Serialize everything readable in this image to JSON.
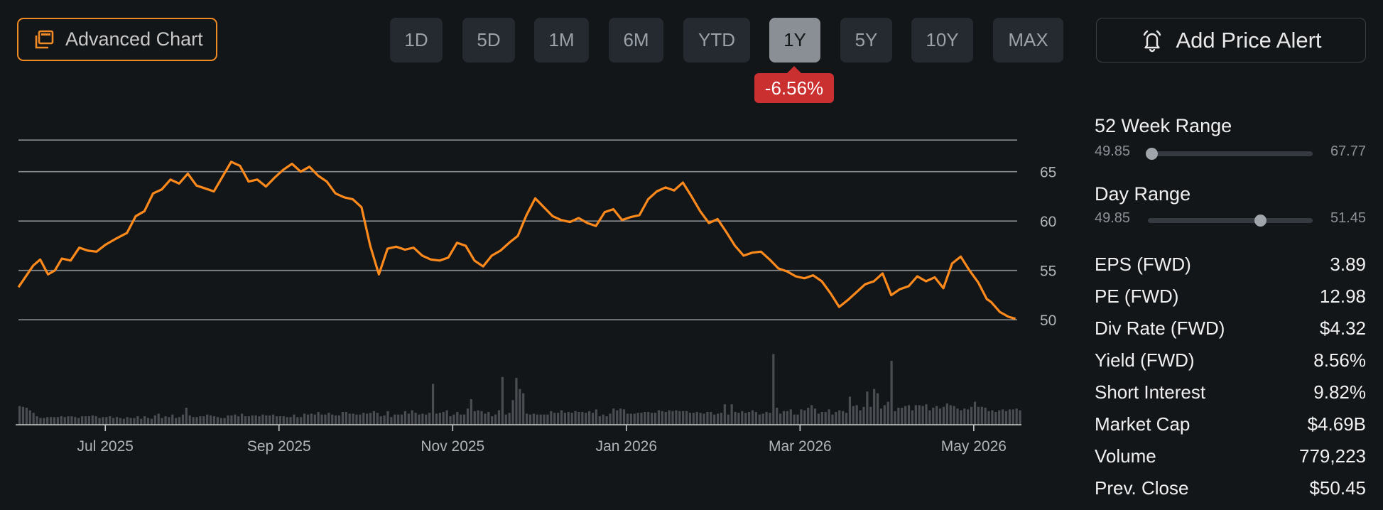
{
  "toolbar": {
    "advanced_chart_label": "Advanced Chart",
    "ranges": [
      "1D",
      "5D",
      "1M",
      "6M",
      "YTD",
      "1Y",
      "5Y",
      "10Y",
      "MAX"
    ],
    "active_range": "1Y",
    "change_badge": "-6.56%",
    "add_alert_label": "Add Price Alert"
  },
  "colors": {
    "line": "#ff8a1c",
    "accent_border": "#f08a24",
    "badge": "#c9302f",
    "volume": "#4a4d52",
    "grid": "#8a8d91",
    "background": "#131619"
  },
  "sidebar": {
    "week52": {
      "title": "52 Week Range",
      "low": "49.85",
      "high": "67.77",
      "position": 0.02
    },
    "day": {
      "title": "Day Range",
      "low": "49.85",
      "high": "51.45",
      "position": 0.68
    },
    "stats": [
      {
        "label": "EPS (FWD)",
        "value": "3.89"
      },
      {
        "label": "PE (FWD)",
        "value": "12.98"
      },
      {
        "label": "Div Rate (FWD)",
        "value": "$4.32"
      },
      {
        "label": "Yield (FWD)",
        "value": "8.56%"
      },
      {
        "label": "Short Interest",
        "value": "9.82%"
      },
      {
        "label": "Market Cap",
        "value": "$4.69B"
      },
      {
        "label": "Volume",
        "value": "779,223"
      },
      {
        "label": "Prev. Close",
        "value": "$50.45"
      }
    ]
  },
  "chart_data": {
    "type": "line",
    "x_tick_labels": [
      "Jul 2025",
      "Sep 2025",
      "Nov 2025",
      "Jan 2026",
      "Mar 2026",
      "May 2026"
    ],
    "y_tick_labels": [
      "65",
      "60",
      "55",
      "50"
    ],
    "x_ticks": [
      {
        "label": "Jul 2025",
        "month": 1.0
      },
      {
        "label": "Sep 2025",
        "month": 3.0
      },
      {
        "label": "Nov 2025",
        "month": 5.0
      },
      {
        "label": "Jan 2026",
        "month": 7.0
      },
      {
        "label": "Mar 2026",
        "month": 9.0
      },
      {
        "label": "May 2026",
        "month": 11.0
      }
    ],
    "y_ticks": [
      65,
      60,
      55,
      50
    ],
    "ylim": [
      49,
      68
    ],
    "xlim": [
      0.0,
      11.5
    ],
    "grid": true,
    "price": {
      "x": [
        0.0,
        0.17,
        0.25,
        0.34,
        0.42,
        0.5,
        0.6,
        0.7,
        0.8,
        0.9,
        1.0,
        1.12,
        1.25,
        1.35,
        1.45,
        1.55,
        1.65,
        1.75,
        1.85,
        1.95,
        2.05,
        2.15,
        2.25,
        2.35,
        2.45,
        2.55,
        2.65,
        2.75,
        2.85,
        2.95,
        3.05,
        3.15,
        3.25,
        3.35,
        3.45,
        3.55,
        3.65,
        3.75,
        3.85,
        3.95,
        4.05,
        4.15,
        4.25,
        4.35,
        4.45,
        4.55,
        4.65,
        4.75,
        4.85,
        4.95,
        5.05,
        5.15,
        5.25,
        5.35,
        5.45,
        5.55,
        5.65,
        5.75,
        5.85,
        5.95,
        6.05,
        6.15,
        6.25,
        6.35,
        6.45,
        6.55,
        6.65,
        6.75,
        6.85,
        6.95,
        7.05,
        7.15,
        7.25,
        7.35,
        7.45,
        7.55,
        7.65,
        7.75,
        7.85,
        7.95,
        8.05,
        8.15,
        8.25,
        8.35,
        8.45,
        8.55,
        8.65,
        8.75,
        8.85,
        8.95,
        9.05,
        9.15,
        9.25,
        9.35,
        9.45,
        9.55,
        9.65,
        9.75,
        9.85,
        9.95,
        10.05,
        10.15,
        10.25,
        10.35,
        10.45,
        10.55,
        10.65,
        10.75,
        10.85,
        10.95,
        11.05,
        11.15,
        11.2,
        11.3,
        11.4,
        11.48
      ],
      "y": [
        53.3,
        55.5,
        56.1,
        54.6,
        55.0,
        56.2,
        56.0,
        57.3,
        57.0,
        56.9,
        57.6,
        58.2,
        58.8,
        60.5,
        61.0,
        62.8,
        63.2,
        64.2,
        63.8,
        64.8,
        63.6,
        63.3,
        63.0,
        64.5,
        66.0,
        65.6,
        64.0,
        64.2,
        63.5,
        64.4,
        65.2,
        65.8,
        65.0,
        65.5,
        64.6,
        64.0,
        62.8,
        62.4,
        62.2,
        61.4,
        57.5,
        54.6,
        57.2,
        57.4,
        57.1,
        57.3,
        56.5,
        56.1,
        56.0,
        56.3,
        57.8,
        57.5,
        56.0,
        55.4,
        56.5,
        57.0,
        57.8,
        58.5,
        60.6,
        62.3,
        61.4,
        60.5,
        60.1,
        59.9,
        60.3,
        59.8,
        59.5,
        60.9,
        61.2,
        60.1,
        60.4,
        60.6,
        62.2,
        63.0,
        63.4,
        63.1,
        63.9,
        62.5,
        61.0,
        59.8,
        60.2,
        58.9,
        57.5,
        56.5,
        56.8,
        56.9,
        56.1,
        55.2,
        54.9,
        54.4,
        54.2,
        54.5,
        53.9,
        52.7,
        51.3,
        52.0,
        52.8,
        53.6,
        53.9,
        54.7,
        52.5,
        53.1,
        53.4,
        54.4,
        53.9,
        54.3,
        53.2,
        55.7,
        56.4,
        55.0,
        53.8,
        52.1,
        51.8,
        50.8,
        50.3,
        50.1
      ]
    },
    "volume": {
      "x0": 0.0,
      "dx": 0.04,
      "values": [
        22,
        21,
        20,
        17,
        14,
        10,
        8,
        8,
        9,
        9,
        9,
        9,
        10,
        9,
        10,
        10,
        9,
        8,
        10,
        10,
        10,
        11,
        10,
        8,
        9,
        9,
        10,
        8,
        9,
        8,
        7,
        9,
        8,
        8,
        10,
        7,
        10,
        8,
        7,
        11,
        13,
        8,
        10,
        9,
        12,
        8,
        9,
        12,
        20,
        11,
        9,
        9,
        10,
        10,
        12,
        11,
        10,
        9,
        8,
        8,
        11,
        11,
        12,
        10,
        13,
        10,
        10,
        11,
        11,
        10,
        12,
        11,
        11,
        12,
        10,
        10,
        10,
        9,
        9,
        12,
        9,
        9,
        13,
        12,
        13,
        12,
        15,
        12,
        12,
        14,
        12,
        11,
        11,
        15,
        15,
        13,
        13,
        12,
        12,
        14,
        13,
        14,
        16,
        14,
        10,
        11,
        16,
        9,
        12,
        12,
        12,
        16,
        13,
        17,
        14,
        12,
        13,
        12,
        14,
        48,
        13,
        14,
        15,
        17,
        10,
        12,
        15,
        12,
        12,
        19,
        30,
        16,
        17,
        16,
        13,
        15,
        10,
        12,
        17,
        56,
        12,
        14,
        29,
        55,
        42,
        37,
        13,
        12,
        13,
        12,
        12,
        12,
        12,
        16,
        14,
        14,
        17,
        14,
        15,
        14,
        16,
        15,
        15,
        14,
        16,
        14,
        18,
        10,
        12,
        10,
        13,
        19,
        17,
        19,
        18,
        13,
        13,
        13,
        14,
        14,
        15,
        15,
        14,
        14,
        17,
        16,
        15,
        17,
        16,
        17,
        16,
        16,
        16,
        14,
        14,
        15,
        14,
        13,
        15,
        15,
        12,
        13,
        14,
        24,
        12,
        24,
        15,
        14,
        16,
        14,
        15,
        17,
        15,
        12,
        13,
        15,
        14,
        83,
        20,
        13,
        16,
        16,
        18,
        12,
        12,
        18,
        17,
        20,
        23,
        19,
        13,
        15,
        15,
        18,
        12,
        15,
        17,
        16,
        14,
        33,
        22,
        23,
        17,
        21,
        39,
        21,
        42,
        37,
        19,
        23,
        27,
        75,
        16,
        20,
        20,
        22,
        23,
        17,
        23,
        23,
        22,
        24,
        17,
        20,
        22,
        19,
        21,
        25,
        23,
        22,
        19,
        17,
        19,
        18,
        21,
        27,
        21,
        21,
        20,
        16,
        17,
        15,
        17,
        18,
        16,
        18,
        18,
        19,
        17,
        17,
        21,
        18,
        18,
        19,
        20,
        21,
        32,
        30,
        34,
        28,
        33,
        26
      ]
    }
  }
}
